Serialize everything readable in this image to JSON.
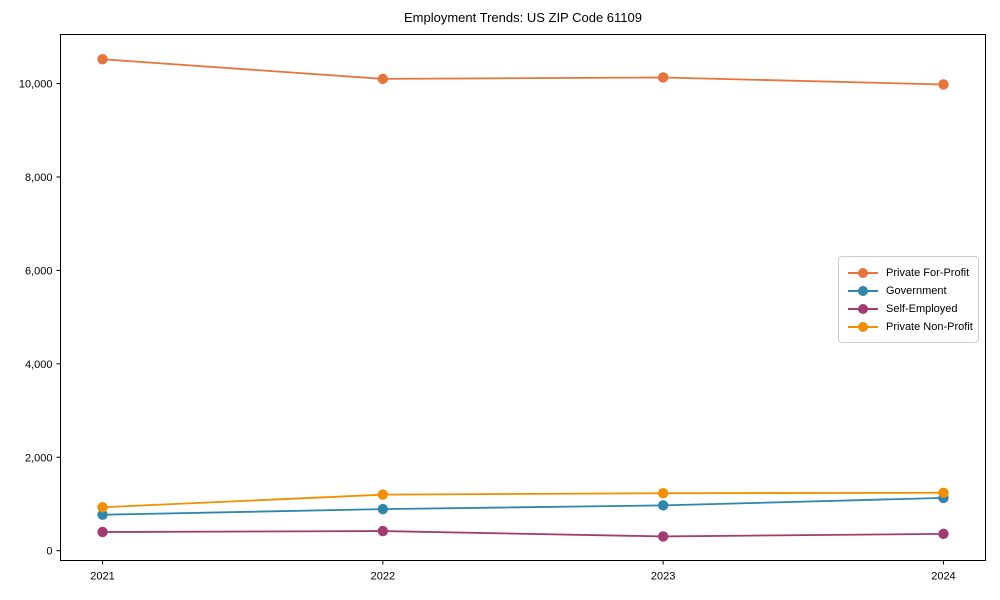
{
  "chart_data": {
    "type": "line",
    "title": "Employment Trends: US ZIP Code 61109",
    "xlabel": "",
    "ylabel": "",
    "x": [
      2021,
      2022,
      2023,
      2024
    ],
    "x_tick_labels": [
      "2021",
      "2022",
      "2023",
      "2024"
    ],
    "series": [
      {
        "name": "Private For-Profit",
        "color": "#E8743B",
        "values": [
          10520,
          10100,
          10130,
          9980
        ]
      },
      {
        "name": "Government",
        "color": "#2E86AB",
        "values": [
          770,
          890,
          970,
          1130
        ]
      },
      {
        "name": "Self-Employed",
        "color": "#A23B72",
        "values": [
          400,
          420,
          305,
          360
        ]
      },
      {
        "name": "Private Non-Profit",
        "color": "#F18F01",
        "values": [
          930,
          1200,
          1230,
          1240
        ]
      }
    ],
    "yticks": [
      0,
      2000,
      4000,
      6000,
      8000,
      10000
    ],
    "y_tick_labels": [
      "0",
      "2,000",
      "4,000",
      "6,000",
      "8,000",
      "10,000"
    ],
    "xlim": [
      2020.85,
      2024.15
    ],
    "ylim": [
      -210,
      11050
    ],
    "grid": false,
    "marker": "circle",
    "legend_position": "center-right",
    "spine_color": "#000000",
    "tick_label_color": "#000000"
  }
}
